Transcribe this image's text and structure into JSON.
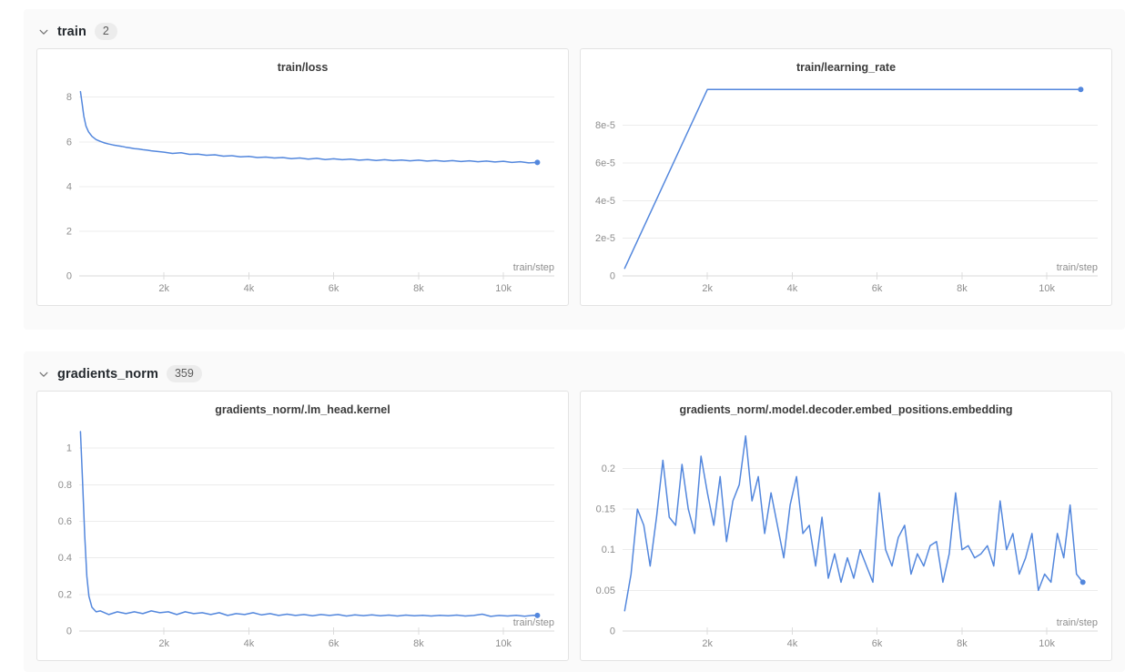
{
  "colors": {
    "line": "#5387dd",
    "grid": "#ececec",
    "axis_baseline": "#d9d9d9",
    "tick": "#dcdcdc",
    "section_bg": "#fafafa",
    "card_border": "#e3e3e3",
    "axis_text": "#8e8e8e"
  },
  "icons": {
    "section_collapse": "chevron-down"
  },
  "sections": [
    {
      "title": "train",
      "badge": "2",
      "chart_indexes": [
        0,
        1
      ]
    },
    {
      "title": "gradients_norm",
      "badge": "359",
      "chart_indexes": [
        2,
        3
      ]
    }
  ],
  "chart_data": [
    {
      "type": "line",
      "title": "train/loss",
      "xlabel": "train/step",
      "xlim": [
        0,
        11200
      ],
      "ylim": [
        0,
        8.6
      ],
      "grid": true,
      "legend": "none",
      "xticks": [
        2000,
        4000,
        6000,
        8000,
        10000
      ],
      "xtick_labels": [
        "2k",
        "4k",
        "6k",
        "8k",
        "10k"
      ],
      "yticks": [
        0,
        2,
        4,
        6,
        8
      ],
      "ytick_labels": [
        "0",
        "2",
        "4",
        "6",
        "8"
      ],
      "end_marker": true,
      "x": [
        30,
        70,
        110,
        160,
        220,
        300,
        400,
        500,
        600,
        700,
        800,
        900,
        1000,
        1100,
        1200,
        1300,
        1400,
        1500,
        1600,
        1700,
        1800,
        1900,
        2000,
        2200,
        2400,
        2600,
        2800,
        3000,
        3200,
        3400,
        3600,
        3800,
        4000,
        4200,
        4400,
        4600,
        4800,
        5000,
        5200,
        5400,
        5600,
        5800,
        6000,
        6200,
        6400,
        6600,
        6800,
        7000,
        7200,
        7400,
        7600,
        7800,
        8000,
        8200,
        8400,
        8600,
        8800,
        9000,
        9200,
        9400,
        9600,
        9800,
        10000,
        10200,
        10400,
        10600,
        10800
      ],
      "y": [
        8.25,
        7.7,
        7.15,
        6.7,
        6.45,
        6.25,
        6.1,
        6.02,
        5.95,
        5.9,
        5.86,
        5.83,
        5.8,
        5.76,
        5.73,
        5.7,
        5.68,
        5.65,
        5.63,
        5.6,
        5.58,
        5.56,
        5.54,
        5.48,
        5.51,
        5.44,
        5.45,
        5.4,
        5.42,
        5.36,
        5.38,
        5.33,
        5.35,
        5.3,
        5.32,
        5.28,
        5.3,
        5.25,
        5.28,
        5.23,
        5.26,
        5.21,
        5.24,
        5.2,
        5.23,
        5.18,
        5.21,
        5.17,
        5.2,
        5.16,
        5.19,
        5.15,
        5.18,
        5.14,
        5.17,
        5.13,
        5.16,
        5.12,
        5.15,
        5.11,
        5.14,
        5.1,
        5.13,
        5.08,
        5.11,
        5.06,
        5.08
      ]
    },
    {
      "type": "line",
      "title": "train/learning_rate",
      "xlabel": "train/step",
      "xlim": [
        0,
        11200
      ],
      "ylim": [
        0,
        0.000102
      ],
      "grid": true,
      "legend": "none",
      "xticks": [
        2000,
        4000,
        6000,
        8000,
        10000
      ],
      "xtick_labels": [
        "2k",
        "4k",
        "6k",
        "8k",
        "10k"
      ],
      "yticks": [
        0,
        2e-05,
        4e-05,
        6e-05,
        8e-05
      ],
      "ytick_labels": [
        "0",
        "2e-5",
        "4e-5",
        "6e-5",
        "8e-5"
      ],
      "end_marker": true,
      "x": [
        50,
        2000,
        10800
      ],
      "y": [
        4e-06,
        9.9e-05,
        9.9e-05
      ]
    },
    {
      "type": "line",
      "title": "gradients_norm/.lm_head.kernel",
      "xlabel": "train/step",
      "xlim": [
        0,
        11200
      ],
      "ylim": [
        0,
        1.12
      ],
      "grid": true,
      "legend": "none",
      "xticks": [
        2000,
        4000,
        6000,
        8000,
        10000
      ],
      "xtick_labels": [
        "2k",
        "4k",
        "6k",
        "8k",
        "10k"
      ],
      "yticks": [
        0,
        0.2,
        0.4,
        0.6,
        0.8,
        1
      ],
      "ytick_labels": [
        "0",
        "0.2",
        "0.4",
        "0.6",
        "0.8",
        "1"
      ],
      "end_marker": true,
      "x": [
        30,
        80,
        130,
        180,
        230,
        300,
        400,
        500,
        700,
        900,
        1100,
        1300,
        1500,
        1700,
        1900,
        2100,
        2300,
        2500,
        2700,
        2900,
        3100,
        3300,
        3500,
        3700,
        3900,
        4100,
        4300,
        4500,
        4700,
        4900,
        5100,
        5300,
        5500,
        5700,
        5900,
        6100,
        6300,
        6500,
        6700,
        6900,
        7100,
        7300,
        7500,
        7700,
        7900,
        8100,
        8300,
        8500,
        8700,
        8900,
        9100,
        9300,
        9500,
        9700,
        9900,
        10100,
        10300,
        10500,
        10700,
        10800
      ],
      "y": [
        1.09,
        0.82,
        0.52,
        0.3,
        0.19,
        0.13,
        0.105,
        0.11,
        0.09,
        0.105,
        0.095,
        0.105,
        0.095,
        0.11,
        0.1,
        0.105,
        0.09,
        0.105,
        0.095,
        0.1,
        0.09,
        0.1,
        0.085,
        0.095,
        0.09,
        0.1,
        0.088,
        0.095,
        0.085,
        0.092,
        0.085,
        0.09,
        0.083,
        0.09,
        0.085,
        0.09,
        0.082,
        0.088,
        0.084,
        0.088,
        0.083,
        0.087,
        0.082,
        0.087,
        0.083,
        0.086,
        0.082,
        0.086,
        0.083,
        0.087,
        0.082,
        0.085,
        0.092,
        0.08,
        0.085,
        0.082,
        0.086,
        0.081,
        0.086,
        0.085
      ]
    },
    {
      "type": "line",
      "title": "gradients_norm/.model.decoder.embed_positions.embedding",
      "xlabel": "train/step",
      "xlim": [
        0,
        11200
      ],
      "ylim": [
        0,
        0.252
      ],
      "grid": true,
      "legend": "none",
      "xticks": [
        2000,
        4000,
        6000,
        8000,
        10000
      ],
      "xtick_labels": [
        "2k",
        "4k",
        "6k",
        "8k",
        "10k"
      ],
      "yticks": [
        0,
        0.05,
        0.1,
        0.15,
        0.2
      ],
      "ytick_labels": [
        "0",
        "0.05",
        "0.1",
        "0.15",
        "0.2"
      ],
      "end_marker": true,
      "x": [
        50,
        200,
        350,
        500,
        650,
        800,
        950,
        1100,
        1250,
        1400,
        1550,
        1700,
        1850,
        2000,
        2150,
        2300,
        2450,
        2600,
        2750,
        2900,
        3050,
        3200,
        3350,
        3500,
        3650,
        3800,
        3950,
        4100,
        4250,
        4400,
        4550,
        4700,
        4850,
        5000,
        5150,
        5300,
        5450,
        5600,
        5750,
        5900,
        6050,
        6200,
        6350,
        6500,
        6650,
        6800,
        6950,
        7100,
        7250,
        7400,
        7550,
        7700,
        7850,
        8000,
        8150,
        8300,
        8450,
        8600,
        8750,
        8900,
        9050,
        9200,
        9350,
        9500,
        9650,
        9800,
        9950,
        10100,
        10250,
        10400,
        10550,
        10700,
        10850
      ],
      "y": [
        0.025,
        0.07,
        0.15,
        0.13,
        0.08,
        0.14,
        0.21,
        0.14,
        0.13,
        0.205,
        0.15,
        0.12,
        0.215,
        0.17,
        0.13,
        0.19,
        0.11,
        0.16,
        0.18,
        0.24,
        0.16,
        0.19,
        0.12,
        0.17,
        0.13,
        0.09,
        0.155,
        0.19,
        0.12,
        0.13,
        0.08,
        0.14,
        0.065,
        0.095,
        0.06,
        0.09,
        0.065,
        0.1,
        0.08,
        0.06,
        0.17,
        0.1,
        0.08,
        0.115,
        0.13,
        0.07,
        0.095,
        0.08,
        0.105,
        0.11,
        0.06,
        0.095,
        0.17,
        0.1,
        0.105,
        0.09,
        0.095,
        0.105,
        0.08,
        0.16,
        0.1,
        0.12,
        0.07,
        0.09,
        0.12,
        0.05,
        0.07,
        0.06,
        0.12,
        0.09,
        0.155,
        0.07,
        0.06
      ]
    }
  ]
}
